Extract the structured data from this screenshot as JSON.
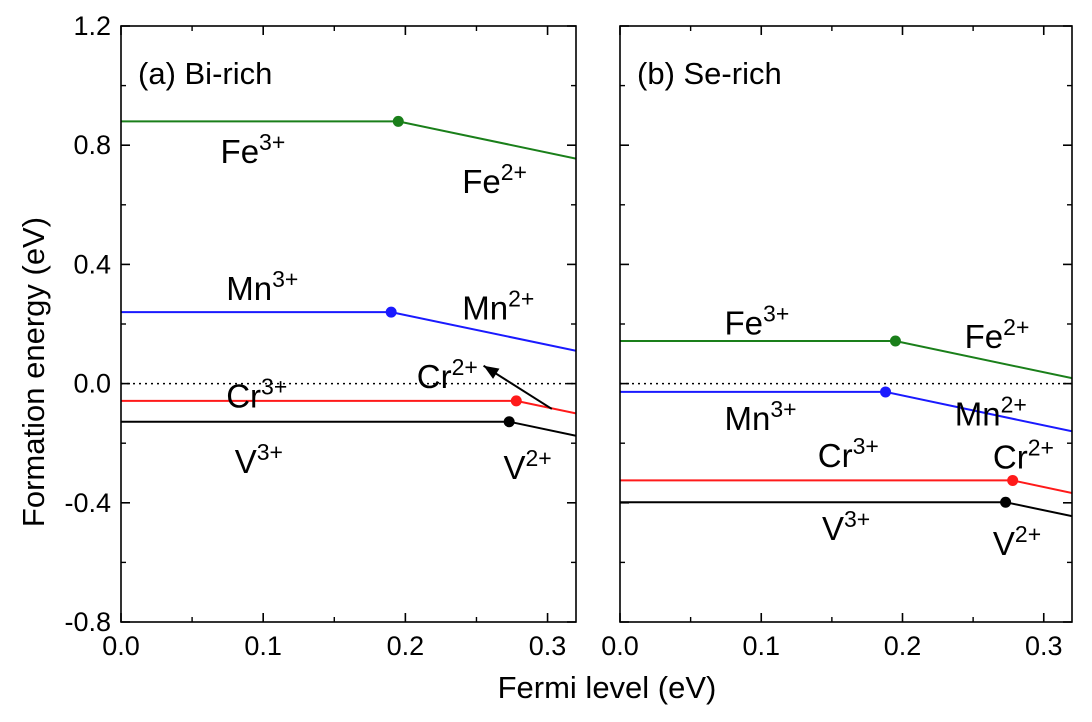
{
  "chart_data": {
    "type": "line",
    "xlabel": "Fermi level (eV)",
    "ylabel": "Formation energy (eV)",
    "xlim": [
      0.0,
      0.32
    ],
    "ylim": [
      -0.8,
      1.2
    ],
    "xticks": [
      "0.0",
      "0.1",
      "0.2",
      "0.3"
    ],
    "yticks": [
      "-0.8",
      "-0.4",
      "0.0",
      "0.4",
      "0.8",
      "1.2"
    ],
    "zero_line": {
      "y": 0.0,
      "style": "dotted"
    },
    "panels": [
      {
        "title": "(a) Bi-rich",
        "series": [
          {
            "element": "Fe",
            "color": "#1a7f1a",
            "points": [
              [
                0.0,
                0.88
              ],
              [
                0.195,
                0.88
              ],
              [
                0.32,
                0.755
              ]
            ],
            "transition": [
              0.195,
              0.88
            ],
            "left_charge": "3+",
            "right_charge": "2+"
          },
          {
            "element": "Mn",
            "color": "#1a1aff",
            "points": [
              [
                0.0,
                0.24
              ],
              [
                0.19,
                0.24
              ],
              [
                0.32,
                0.11
              ]
            ],
            "transition": [
              0.19,
              0.24
            ],
            "left_charge": "3+",
            "right_charge": "2+"
          },
          {
            "element": "Cr",
            "color": "#ff1a1a",
            "points": [
              [
                0.0,
                -0.058
              ],
              [
                0.278,
                -0.058
              ],
              [
                0.32,
                -0.1
              ]
            ],
            "transition": [
              0.278,
              -0.058
            ],
            "left_charge": "3+",
            "right_charge": "2+"
          },
          {
            "element": "V",
            "color": "#000000",
            "points": [
              [
                0.0,
                -0.128
              ],
              [
                0.273,
                -0.128
              ],
              [
                0.32,
                -0.175
              ]
            ],
            "transition": [
              0.273,
              -0.128
            ],
            "left_charge": "3+",
            "right_charge": "2+"
          }
        ],
        "annotations": [
          {
            "text": "Fe",
            "charge": "3+",
            "x": 0.07,
            "y": 0.74,
            "anchor": "start"
          },
          {
            "text": "Fe",
            "charge": "2+",
            "x": 0.24,
            "y": 0.64,
            "anchor": "start"
          },
          {
            "text": "Mn",
            "charge": "3+",
            "x": 0.074,
            "y": 0.28,
            "anchor": "start"
          },
          {
            "text": "Mn",
            "charge": "2+",
            "x": 0.24,
            "y": 0.215,
            "anchor": "start"
          },
          {
            "text": "Cr",
            "charge": "3+",
            "x": 0.074,
            "y": -0.08,
            "anchor": "start"
          },
          {
            "text": "Cr",
            "charge": "2+",
            "x": 0.208,
            "y": -0.015,
            "anchor": "start"
          },
          {
            "text": "V",
            "charge": "3+",
            "x": 0.08,
            "y": -0.3,
            "anchor": "start"
          },
          {
            "text": "V",
            "charge": "2+",
            "x": 0.269,
            "y": -0.32,
            "anchor": "start"
          }
        ],
        "arrow": {
          "from": [
            0.303,
            -0.085
          ],
          "to": [
            0.255,
            0.06
          ]
        }
      },
      {
        "title": "(b) Se-rich",
        "series": [
          {
            "element": "Fe",
            "color": "#1a7f1a",
            "points": [
              [
                0.0,
                0.143
              ],
              [
                0.195,
                0.143
              ],
              [
                0.32,
                0.018
              ]
            ],
            "transition": [
              0.195,
              0.143
            ],
            "left_charge": "3+",
            "right_charge": "2+"
          },
          {
            "element": "Mn",
            "color": "#1a1aff",
            "points": [
              [
                0.0,
                -0.028
              ],
              [
                0.188,
                -0.028
              ],
              [
                0.32,
                -0.16
              ]
            ],
            "transition": [
              0.188,
              -0.028
            ],
            "left_charge": "3+",
            "right_charge": "2+"
          },
          {
            "element": "Cr",
            "color": "#ff1a1a",
            "points": [
              [
                0.0,
                -0.325
              ],
              [
                0.278,
                -0.325
              ],
              [
                0.32,
                -0.367
              ]
            ],
            "transition": [
              0.278,
              -0.325
            ],
            "left_charge": "3+",
            "right_charge": "2+"
          },
          {
            "element": "V",
            "color": "#000000",
            "points": [
              [
                0.0,
                -0.398
              ],
              [
                0.273,
                -0.398
              ],
              [
                0.32,
                -0.445
              ]
            ],
            "transition": [
              0.273,
              -0.398
            ],
            "left_charge": "3+",
            "right_charge": "2+"
          }
        ],
        "annotations": [
          {
            "text": "Fe",
            "charge": "3+",
            "x": 0.074,
            "y": 0.165,
            "anchor": "start"
          },
          {
            "text": "Fe",
            "charge": "2+",
            "x": 0.244,
            "y": 0.12,
            "anchor": "start"
          },
          {
            "text": "Mn",
            "charge": "3+",
            "x": 0.074,
            "y": -0.155,
            "anchor": "start"
          },
          {
            "text": "Mn",
            "charge": "2+",
            "x": 0.237,
            "y": -0.14,
            "anchor": "start"
          },
          {
            "text": "Cr",
            "charge": "3+",
            "x": 0.14,
            "y": -0.28,
            "anchor": "start"
          },
          {
            "text": "Cr",
            "charge": "2+",
            "x": 0.264,
            "y": -0.285,
            "anchor": "start"
          },
          {
            "text": "V",
            "charge": "3+",
            "x": 0.143,
            "y": -0.525,
            "anchor": "start"
          },
          {
            "text": "V",
            "charge": "2+",
            "x": 0.264,
            "y": -0.575,
            "anchor": "start"
          }
        ]
      }
    ]
  }
}
